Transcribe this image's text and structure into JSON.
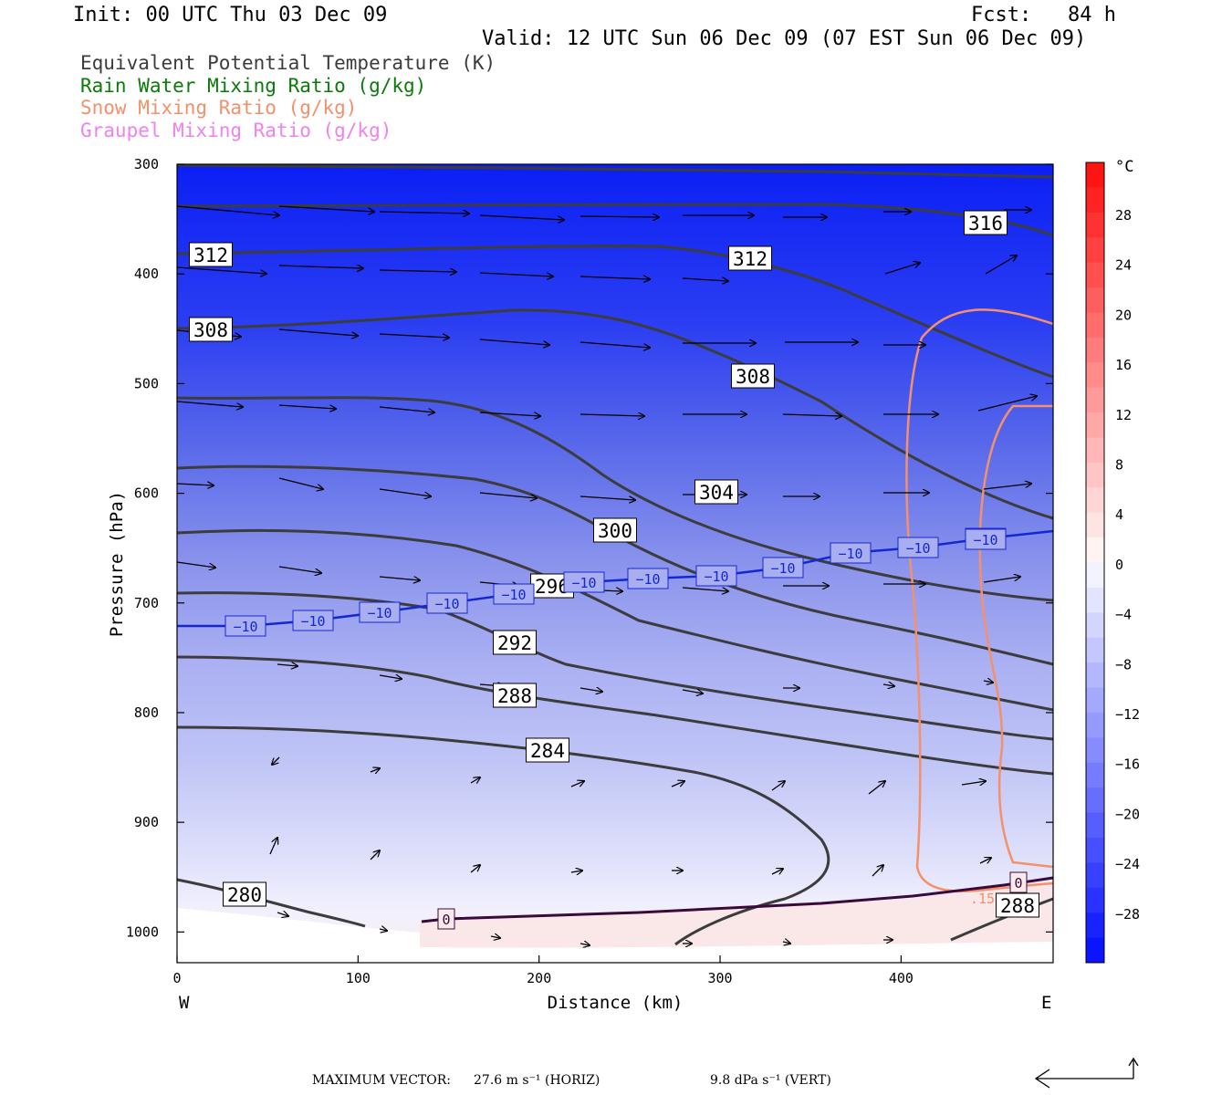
{
  "header": {
    "init": "Init: 00 UTC Thu 03 Dec 09",
    "fcst": "Fcst:   84 h",
    "valid": "Valid: 12 UTC Sun 06 Dec 09 (07 EST Sun 06 Dec 09)"
  },
  "legend": [
    {
      "label": "Equivalent Potential Temperature (K)",
      "color": "#3c3c3c"
    },
    {
      "label": "Rain Water Mixing Ratio (g/kg)",
      "color": "#0a7a0a"
    },
    {
      "label": "Snow Mixing Ratio (g/kg)",
      "color": "#f4906a"
    },
    {
      "label": "Graupel Mixing Ratio (g/kg)",
      "color": "#ee82ee"
    }
  ],
  "footer": {
    "max_vector": "MAXIMUM VECTOR:",
    "horiz": "27.6 m s⁻¹ (HORIZ)",
    "vert": "9.8 dPa s⁻¹ (VERT)"
  },
  "chart_data": {
    "type": "cross-section",
    "xlabel": "Distance (km)",
    "ylabel": "Pressure (hPa)",
    "xlim": [
      0,
      484
    ],
    "ylim": [
      1028,
      300
    ],
    "x_ticks": [
      "0",
      "100",
      "200",
      "300",
      "400"
    ],
    "x_end_labels": {
      "left": "W",
      "right": "E"
    },
    "y_ticks": [
      "300",
      "400",
      "500",
      "600",
      "700",
      "800",
      "900",
      "1000"
    ],
    "colorbar": {
      "unit": "°C",
      "labels": [
        "28",
        "24",
        "20",
        "16",
        "12",
        "8",
        "4",
        "0",
        "−4",
        "−8",
        "−12",
        "−16",
        "−20",
        "−24",
        "−28"
      ]
    },
    "theta_e_labels": [
      "316",
      "312",
      "312",
      "308",
      "308",
      "304",
      "300",
      "296",
      "292",
      "288",
      "284",
      "280",
      "288"
    ],
    "temperature_labels": [
      "−10",
      "−10",
      "−10",
      "−10",
      "−10",
      "−10",
      "−10",
      "−10",
      "−10",
      "−10",
      "−10",
      "−10",
      "−10",
      "0",
      "0"
    ],
    "snow_label": ".15"
  }
}
